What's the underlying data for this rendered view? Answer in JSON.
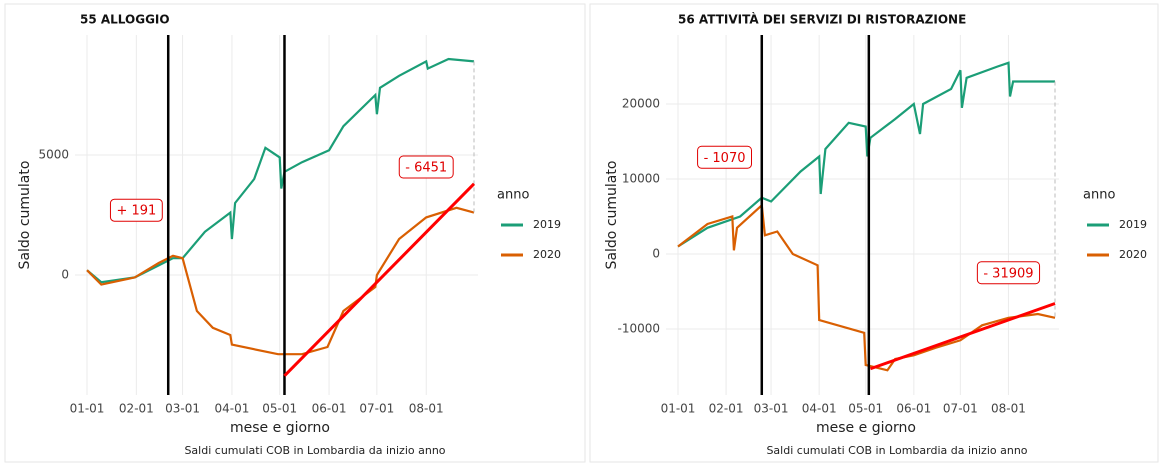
{
  "chart_data": [
    {
      "type": "line",
      "title": "55 ALLOGGIO",
      "x_label": "mese e giorno",
      "y_label": "Saldo cumulato",
      "caption": "Saldi cumulati COB in Lombardia da inizio anno",
      "legend_title": "anno",
      "legend": "right",
      "grid": true,
      "xlim": [
        "01-01",
        "08-31"
      ],
      "xticks": [
        "01-01",
        "02-01",
        "03-01",
        "04-01",
        "05-01",
        "06-01",
        "07-01",
        "08-01"
      ],
      "ylim": [
        -5000,
        10000
      ],
      "yticks": [
        0,
        5000
      ],
      "series": [
        {
          "name": "2019",
          "color": "#1b9e77",
          "x": [
            "01-01",
            "01-10",
            "01-31",
            "02-15",
            "02-24",
            "03-01",
            "03-15",
            "03-31",
            "04-01",
            "04-03",
            "04-15",
            "04-22",
            "05-01",
            "05-02",
            "05-04",
            "05-15",
            "06-01",
            "06-10",
            "06-30",
            "07-01",
            "07-03",
            "07-15",
            "08-01",
            "08-02",
            "08-15",
            "08-31"
          ],
          "values": [
            200,
            -300,
            -100,
            400,
            700,
            700,
            1800,
            2600,
            1500,
            3000,
            4000,
            5300,
            4900,
            3600,
            4300,
            4700,
            5200,
            6200,
            7500,
            6700,
            7800,
            8300,
            8900,
            8600,
            9000,
            8900
          ]
        },
        {
          "name": "2020",
          "color": "#d95f02",
          "x": [
            "01-01",
            "01-10",
            "01-31",
            "02-15",
            "02-24",
            "03-01",
            "03-10",
            "03-20",
            "03-31",
            "04-01",
            "04-30",
            "05-15",
            "05-31",
            "06-10",
            "06-30",
            "07-01",
            "07-15",
            "08-01",
            "08-20",
            "08-31"
          ],
          "values": [
            200,
            -400,
            -100,
            500,
            800,
            700,
            -1500,
            -2200,
            -2500,
            -2900,
            -3300,
            -3300,
            -3000,
            -1500,
            -500,
            0,
            1500,
            2400,
            2800,
            2600
          ]
        }
      ],
      "vlines": [
        "02-21",
        "05-04"
      ],
      "vline_color": "#000000",
      "trend": {
        "color": "#ff0000",
        "x": [
          "05-04",
          "08-31"
        ],
        "values": [
          -4200,
          3800
        ]
      },
      "annotations": [
        {
          "text": "+ 191",
          "x": "02-01",
          "y": 2700
        },
        {
          "text": "- 6451",
          "x": "08-01",
          "y": 4500
        }
      ]
    },
    {
      "type": "line",
      "title": "56 ATTIVITÀ DEI SERVIZI DI RISTORAZIONE",
      "x_label": "mese e giorno",
      "y_label": "Saldo cumulato",
      "caption": "Saldi cumulati COB in Lombardia da inizio anno",
      "legend_title": "anno",
      "legend": "right",
      "grid": true,
      "xlim": [
        "01-01",
        "08-31"
      ],
      "xticks": [
        "01-01",
        "02-01",
        "03-01",
        "04-01",
        "05-01",
        "06-01",
        "07-01",
        "08-01"
      ],
      "ylim": [
        -18800,
        29200
      ],
      "yticks": [
        -10000,
        0,
        10000,
        20000
      ],
      "series": [
        {
          "name": "2019",
          "color": "#1b9e77",
          "x": [
            "01-01",
            "01-20",
            "02-10",
            "02-24",
            "03-01",
            "03-20",
            "04-01",
            "04-02",
            "04-05",
            "04-20",
            "05-01",
            "05-02",
            "05-04",
            "05-20",
            "06-01",
            "06-05",
            "06-07",
            "06-25",
            "07-01",
            "07-02",
            "07-05",
            "07-25",
            "08-01",
            "08-02",
            "08-04",
            "08-31"
          ],
          "values": [
            1000,
            3500,
            5000,
            7500,
            7000,
            11000,
            13000,
            8000,
            14000,
            17500,
            17000,
            13000,
            15500,
            18000,
            20000,
            16000,
            20000,
            22000,
            24500,
            19500,
            23500,
            25000,
            25500,
            21000,
            23000,
            23000
          ]
        },
        {
          "name": "2020",
          "color": "#d95f02",
          "x": [
            "01-01",
            "01-20",
            "02-05",
            "02-06",
            "02-08",
            "02-24",
            "02-26",
            "03-05",
            "03-15",
            "03-31",
            "04-01",
            "04-30",
            "05-01",
            "05-15",
            "05-20",
            "06-01",
            "06-15",
            "07-01",
            "07-15",
            "08-01",
            "08-20",
            "08-31"
          ],
          "values": [
            1000,
            4000,
            5000,
            500,
            3500,
            6500,
            2500,
            3000,
            0,
            -1500,
            -8800,
            -10500,
            -14800,
            -15500,
            -14000,
            -13500,
            -12500,
            -11500,
            -9500,
            -8500,
            -8000,
            -8500
          ]
        }
      ],
      "vlines": [
        "02-24",
        "05-03"
      ],
      "vline_color": "#000000",
      "trend": {
        "color": "#ff0000",
        "x": [
          "05-04",
          "08-31"
        ],
        "values": [
          -15300,
          -6600
        ]
      },
      "annotations": [
        {
          "text": "- 1070",
          "x": "01-31",
          "y": 12900
        },
        {
          "text": "- 31909",
          "x": "08-01",
          "y": -2500
        }
      ]
    }
  ]
}
